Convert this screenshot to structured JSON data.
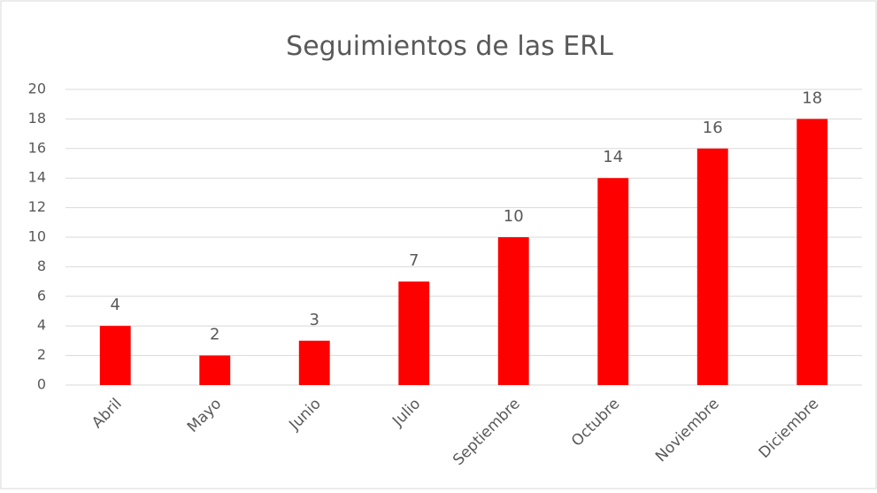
{
  "chart_data": {
    "type": "bar",
    "title": "Seguimientos de las ERL",
    "categories": [
      "Abril",
      "Mayo",
      "Junio",
      "Julio",
      "Septiembre",
      "Octubre",
      "Noviembre",
      "Diciembre"
    ],
    "values": [
      4,
      2,
      3,
      7,
      10,
      14,
      16,
      18
    ],
    "color": "#ff0000",
    "ylim": [
      0,
      20
    ],
    "yticks": [
      0,
      2,
      4,
      6,
      8,
      10,
      12,
      14,
      16,
      18,
      20
    ],
    "grid": true
  }
}
